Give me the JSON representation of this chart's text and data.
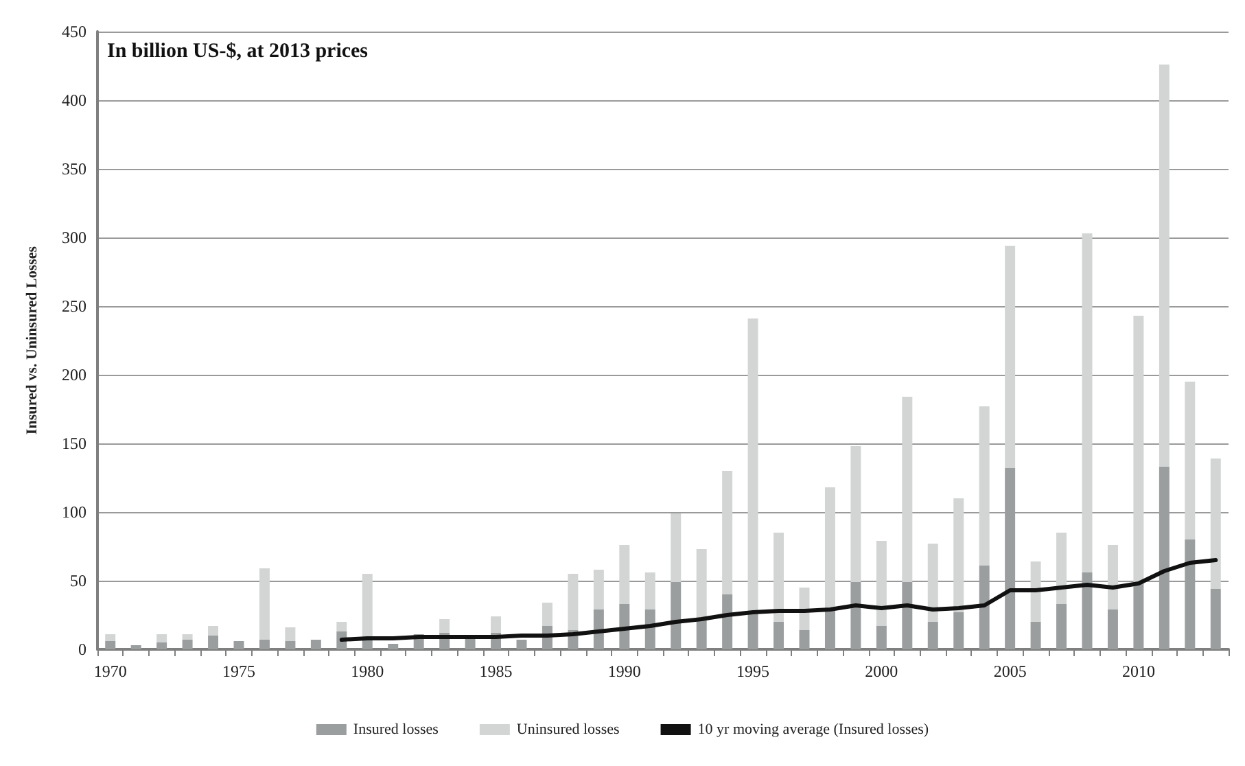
{
  "chart_data": {
    "type": "bar",
    "stacked": true,
    "annotations": [
      "In billion US-$, at 2013 prices"
    ],
    "ylabel": "Insured vs. Uninsured Losses",
    "categories": [
      "1970",
      null,
      null,
      null,
      null,
      "1975",
      null,
      null,
      null,
      null,
      "1980",
      null,
      null,
      null,
      null,
      "1985",
      null,
      null,
      null,
      null,
      "1990",
      null,
      null,
      null,
      null,
      "1995",
      null,
      null,
      null,
      null,
      "2000",
      null,
      null,
      null,
      null,
      "2005",
      null,
      null,
      null,
      null,
      "2010",
      null,
      null,
      null
    ],
    "series": [
      {
        "name": "Insured losses",
        "color": "#9a9e9f",
        "values": [
          6,
          3,
          5,
          7,
          10,
          6,
          7,
          6,
          7,
          13,
          7,
          4,
          11,
          12,
          10,
          12,
          7,
          17,
          14,
          29,
          33,
          29,
          49,
          23,
          40,
          26,
          20,
          14,
          29,
          49,
          17,
          49,
          20,
          27,
          61,
          132,
          20,
          33,
          56,
          29,
          48,
          133,
          80,
          44
        ]
      },
      {
        "name": "Uninsured losses",
        "color": "#d3d5d5",
        "values": [
          5,
          0,
          6,
          4,
          7,
          0,
          52,
          10,
          0,
          7,
          48,
          0,
          0,
          10,
          null,
          12,
          0,
          17,
          41,
          29,
          43,
          27,
          50,
          50,
          90,
          215,
          65,
          31,
          89,
          99,
          62,
          135,
          57,
          83,
          116,
          162,
          44,
          52,
          247,
          47,
          195,
          293,
          115,
          95
        ]
      },
      {
        "name": "10 yr moving average (Insured losses)",
        "type": "line",
        "color": "#111111",
        "values": [
          null,
          null,
          null,
          null,
          null,
          null,
          null,
          null,
          null,
          7,
          8,
          8,
          9,
          9,
          9,
          9,
          10,
          10,
          11,
          13,
          15,
          17,
          20,
          22,
          25,
          27,
          28,
          28,
          29,
          32,
          30,
          32,
          29,
          30,
          32,
          43,
          43,
          45,
          47,
          45,
          48,
          57,
          63,
          65
        ]
      }
    ],
    "ylim": [
      0,
      450
    ],
    "yticks": [
      0,
      50,
      100,
      150,
      200,
      250,
      300,
      350,
      400,
      450
    ],
    "grid": "y",
    "legend": "bottom",
    "marker": "none",
    "line_style": "solid"
  }
}
